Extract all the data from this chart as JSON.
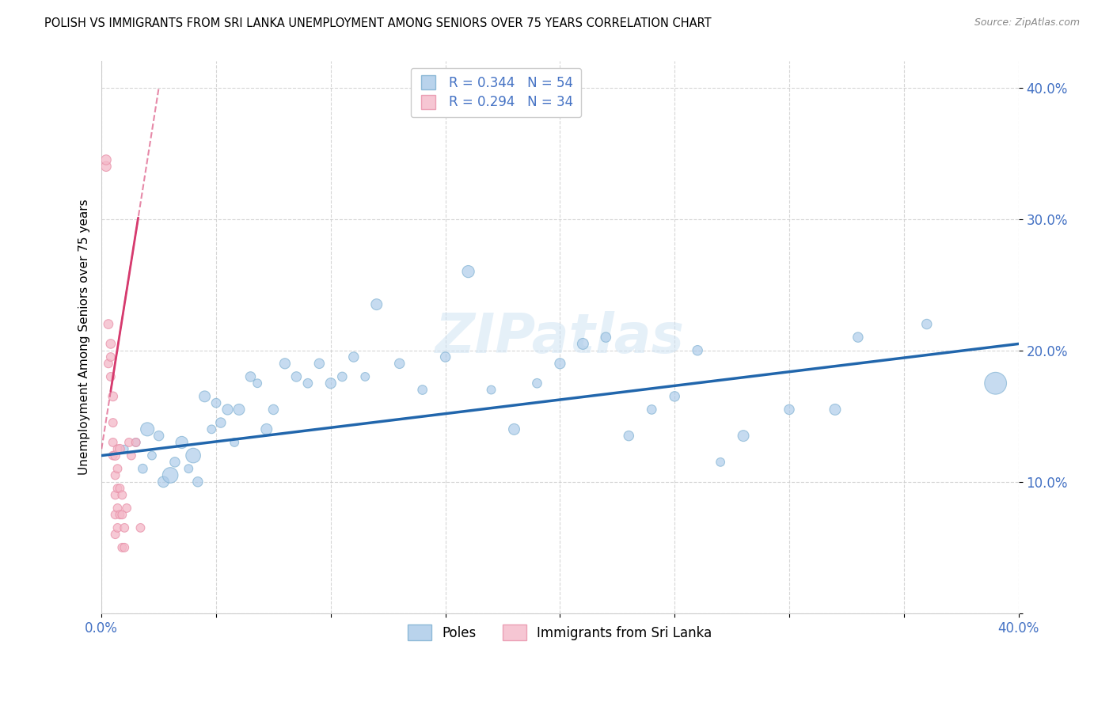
{
  "title": "POLISH VS IMMIGRANTS FROM SRI LANKA UNEMPLOYMENT AMONG SENIORS OVER 75 YEARS CORRELATION CHART",
  "source": "Source: ZipAtlas.com",
  "ylabel": "Unemployment Among Seniors over 75 years",
  "xlim": [
    0.0,
    0.4
  ],
  "ylim": [
    0.0,
    0.42
  ],
  "blue_color": "#a8c8e8",
  "blue_edge_color": "#7aaed0",
  "blue_line_color": "#2166ac",
  "pink_color": "#f4b8c8",
  "pink_edge_color": "#e890a8",
  "pink_line_color": "#d63a6e",
  "legend_R_blue": "R = 0.344",
  "legend_N_blue": "N = 54",
  "legend_R_pink": "R = 0.294",
  "legend_N_pink": "N = 34",
  "watermark": "ZIPatlas",
  "poles_label": "Poles",
  "srilanka_label": "Immigrants from Sri Lanka",
  "blue_line_x0": 0.0,
  "blue_line_y0": 0.12,
  "blue_line_x1": 0.4,
  "blue_line_y1": 0.205,
  "pink_line_x0": 0.0,
  "pink_line_y0": 0.125,
  "pink_line_x1": 0.025,
  "pink_line_y1": 0.4,
  "blue_scatter_x": [
    0.01,
    0.015,
    0.018,
    0.02,
    0.022,
    0.025,
    0.027,
    0.03,
    0.032,
    0.035,
    0.038,
    0.04,
    0.042,
    0.045,
    0.048,
    0.05,
    0.052,
    0.055,
    0.058,
    0.06,
    0.065,
    0.068,
    0.072,
    0.075,
    0.08,
    0.085,
    0.09,
    0.095,
    0.1,
    0.105,
    0.11,
    0.115,
    0.12,
    0.13,
    0.14,
    0.15,
    0.16,
    0.17,
    0.18,
    0.19,
    0.2,
    0.21,
    0.22,
    0.23,
    0.24,
    0.25,
    0.26,
    0.27,
    0.28,
    0.3,
    0.32,
    0.33,
    0.36,
    0.39
  ],
  "blue_scatter_y": [
    0.125,
    0.13,
    0.11,
    0.14,
    0.12,
    0.135,
    0.1,
    0.105,
    0.115,
    0.13,
    0.11,
    0.12,
    0.1,
    0.165,
    0.14,
    0.16,
    0.145,
    0.155,
    0.13,
    0.155,
    0.18,
    0.175,
    0.14,
    0.155,
    0.19,
    0.18,
    0.175,
    0.19,
    0.175,
    0.18,
    0.195,
    0.18,
    0.235,
    0.19,
    0.17,
    0.195,
    0.26,
    0.17,
    0.14,
    0.175,
    0.19,
    0.205,
    0.21,
    0.135,
    0.155,
    0.165,
    0.2,
    0.115,
    0.135,
    0.155,
    0.155,
    0.21,
    0.22,
    0.175
  ],
  "blue_scatter_size": [
    50,
    60,
    70,
    150,
    60,
    80,
    100,
    200,
    80,
    120,
    60,
    180,
    80,
    100,
    60,
    70,
    80,
    90,
    60,
    100,
    80,
    60,
    100,
    80,
    90,
    80,
    70,
    80,
    90,
    70,
    80,
    60,
    100,
    80,
    70,
    80,
    120,
    60,
    100,
    70,
    90,
    100,
    80,
    80,
    70,
    80,
    80,
    60,
    100,
    80,
    100,
    80,
    80,
    400
  ],
  "pink_scatter_x": [
    0.002,
    0.002,
    0.003,
    0.003,
    0.004,
    0.004,
    0.004,
    0.005,
    0.005,
    0.005,
    0.005,
    0.006,
    0.006,
    0.006,
    0.006,
    0.006,
    0.007,
    0.007,
    0.007,
    0.007,
    0.007,
    0.008,
    0.008,
    0.008,
    0.009,
    0.009,
    0.009,
    0.01,
    0.01,
    0.011,
    0.012,
    0.013,
    0.015,
    0.017
  ],
  "pink_scatter_y": [
    0.34,
    0.345,
    0.22,
    0.19,
    0.205,
    0.18,
    0.195,
    0.165,
    0.145,
    0.12,
    0.13,
    0.12,
    0.105,
    0.09,
    0.075,
    0.06,
    0.125,
    0.11,
    0.095,
    0.08,
    0.065,
    0.125,
    0.095,
    0.075,
    0.09,
    0.075,
    0.05,
    0.065,
    0.05,
    0.08,
    0.13,
    0.12,
    0.13,
    0.065
  ],
  "pink_scatter_size": [
    80,
    80,
    70,
    60,
    70,
    60,
    60,
    70,
    60,
    60,
    60,
    70,
    60,
    60,
    60,
    60,
    60,
    60,
    60,
    60,
    60,
    70,
    60,
    60,
    60,
    60,
    60,
    60,
    60,
    60,
    60,
    60,
    60,
    60
  ]
}
